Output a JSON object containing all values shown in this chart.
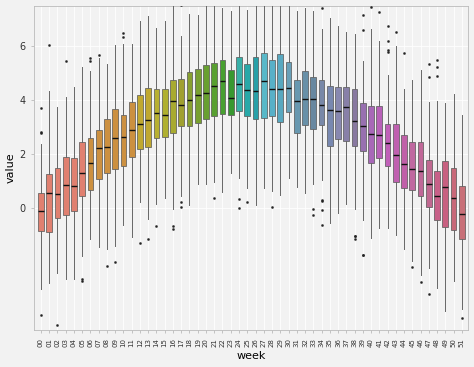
{
  "title": "",
  "xlabel": "week",
  "ylabel": "value",
  "background_color": "#f2f2f2",
  "grid_color": "#ffffff",
  "weeks": [
    "00",
    "01",
    "02",
    "03",
    "04",
    "05",
    "06",
    "07",
    "08",
    "09",
    "10",
    "11",
    "12",
    "13",
    "14",
    "15",
    "16",
    "17",
    "18",
    "19",
    "20",
    "21",
    "22",
    "23",
    "24",
    "25",
    "26",
    "27",
    "28",
    "29",
    "30",
    "31",
    "32",
    "33",
    "34",
    "35",
    "36",
    "37",
    "38",
    "39",
    "40",
    "41",
    "42",
    "43",
    "44",
    "45",
    "46",
    "47",
    "48",
    "49",
    "50",
    "51"
  ],
  "ylim": [
    -4.5,
    7.5
  ],
  "yticks": [
    0,
    2,
    4,
    6
  ],
  "colors": {
    "00": "#e08070",
    "01": "#e08070",
    "02": "#e08070",
    "03": "#e08070",
    "04": "#e08070",
    "05": "#e08070",
    "06": "#cc9040",
    "07": "#cc9040",
    "08": "#cc9040",
    "09": "#cc9040",
    "10": "#cc9040",
    "11": "#cc9040",
    "12": "#c0a830",
    "13": "#c0a830",
    "14": "#b8b030",
    "15": "#b0b030",
    "16": "#a8aa30",
    "17": "#a0a030",
    "18": "#88a030",
    "19": "#78a030",
    "20": "#68a030",
    "21": "#58a030",
    "22": "#48a030",
    "23": "#389830",
    "24": "#38b0a8",
    "25": "#28a8a8",
    "26": "#28a0a8",
    "27": "#58b8c8",
    "28": "#58b0c8",
    "29": "#58a8c0",
    "30": "#68a0b8",
    "31": "#6898b0",
    "32": "#6890a8",
    "33": "#6888a0",
    "34": "#7888a8",
    "35": "#7888b0",
    "36": "#8888b0",
    "37": "#8880a8",
    "38": "#8878a0",
    "39": "#9870b0",
    "40": "#a868b8",
    "41": "#b860b8",
    "42": "#c060b8",
    "43": "#c060b0",
    "44": "#c060a8",
    "45": "#c068a0",
    "46": "#c06898",
    "47": "#c06890",
    "48": "#c86088",
    "49": "#c86080",
    "50": "#c86878",
    "51": "#c87078"
  },
  "n_per_week": 120,
  "seed": 42
}
